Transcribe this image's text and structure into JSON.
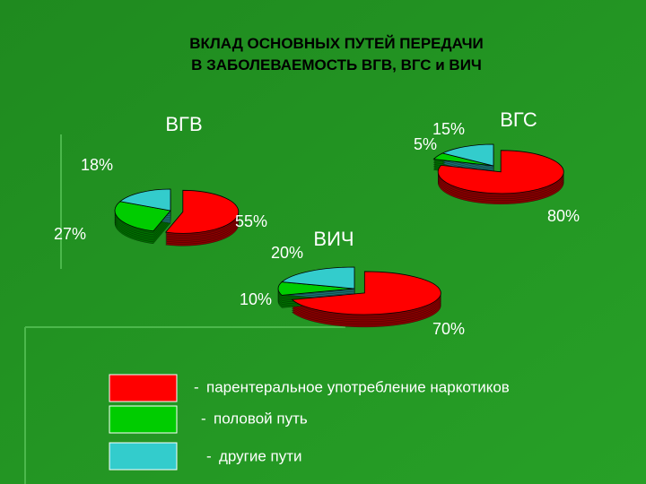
{
  "title": "ВКЛАД ОСНОВНЫХ ПУТЕЙ ПЕРЕДАЧИ\nВ ЗАБОЛЕВАЕМОСТЬ ВГВ, ВГС и ВИЧ",
  "chart_data": [
    {
      "type": "pie",
      "title": "ВГВ",
      "categories": [
        "парентеральное употребление наркотиков",
        "половой путь",
        "другие пути"
      ],
      "colors": [
        "#ff0000",
        "#00cc00",
        "#33cccc"
      ],
      "values": [
        55,
        27,
        18
      ],
      "value_labels": [
        "55%",
        "27%",
        "18%"
      ]
    },
    {
      "type": "pie",
      "title": "ВГС",
      "categories": [
        "парентеральное употребление наркотиков",
        "половой путь",
        "другие пути"
      ],
      "colors": [
        "#ff0000",
        "#00cc00",
        "#33cccc"
      ],
      "values": [
        80,
        5,
        15
      ],
      "value_labels": [
        "80%",
        "5%",
        "15%"
      ]
    },
    {
      "type": "pie",
      "title": "ВИЧ",
      "categories": [
        "парентеральное употребление наркотиков",
        "половой путь",
        "другие пути"
      ],
      "colors": [
        "#ff0000",
        "#00cc00",
        "#33cccc"
      ],
      "values": [
        70,
        10,
        20
      ],
      "value_labels": [
        "70%",
        "10%",
        "20%"
      ]
    }
  ]
}
